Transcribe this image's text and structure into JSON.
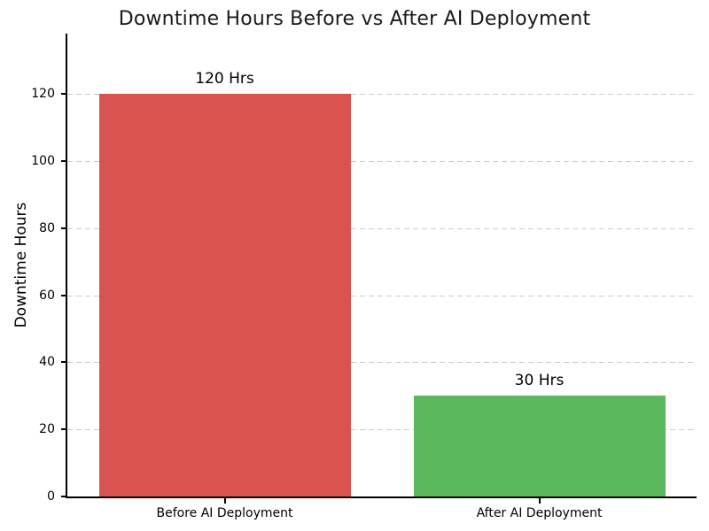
{
  "chart_data": {
    "type": "bar",
    "title": "Downtime Hours Before vs After AI Deployment",
    "ylabel": "Downtime Hours",
    "xlabel": "",
    "categories": [
      "Before AI Deployment",
      "After AI Deployment"
    ],
    "values": [
      120,
      30
    ],
    "value_labels": [
      "120 Hrs",
      "30 Hrs"
    ],
    "bar_colors": [
      "#d9534f",
      "#5cb85c"
    ],
    "yticks": [
      0,
      20,
      40,
      60,
      80,
      100,
      120
    ],
    "ylim": [
      0,
      138
    ],
    "grid": "horizontal-dashed",
    "grid_color": "#cccccc",
    "spine_color": "#000000",
    "text_color": "#1a1a1a",
    "legend": "none"
  }
}
